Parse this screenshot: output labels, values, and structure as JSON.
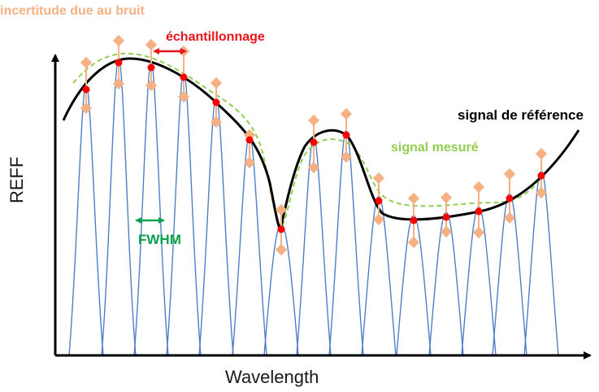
{
  "labels": {
    "noise_uncertainty": "incertitude due au bruit",
    "sampling": "échantillonnage",
    "reference_signal": "signal de référence",
    "measured_signal": "signal mesuré",
    "fwhm": "FWHM",
    "x_axis": "Wavelength",
    "y_axis": "REFF"
  },
  "colors": {
    "reference": "#000000",
    "measured": "#92cf50",
    "sample_points": "#ff0000",
    "noise": "#f5b183",
    "bands": "#4f7fc4",
    "sampling_arrow": "#e8141b",
    "fwhm_arrow": "#0aa14d",
    "axes": "#000000"
  }
}
